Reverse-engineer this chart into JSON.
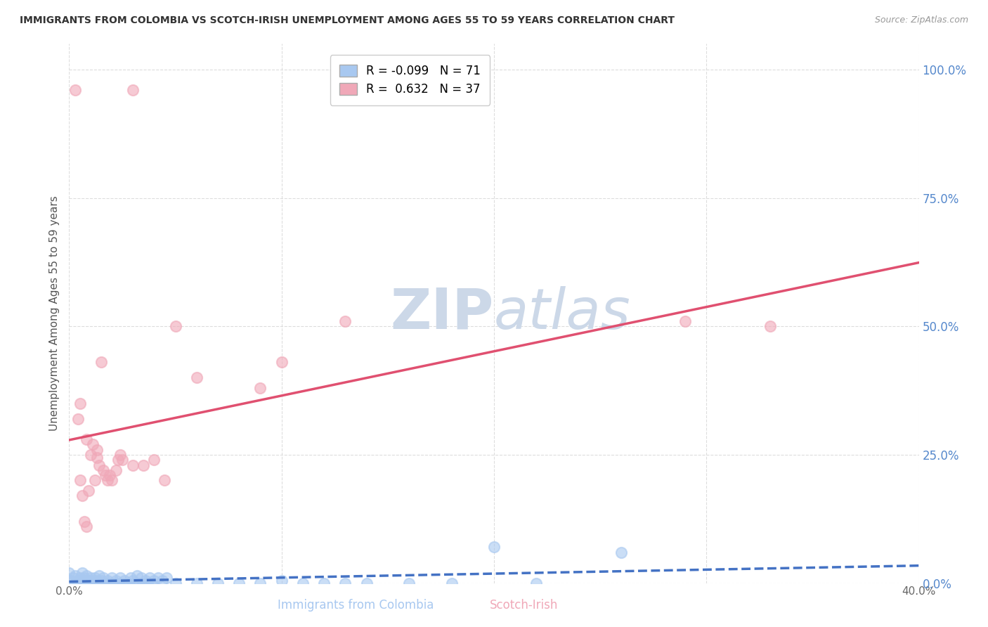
{
  "title": "IMMIGRANTS FROM COLOMBIA VS SCOTCH-IRISH UNEMPLOYMENT AMONG AGES 55 TO 59 YEARS CORRELATION CHART",
  "source": "Source: ZipAtlas.com",
  "ylabel": "Unemployment Among Ages 55 to 59 years",
  "xlabel_colombia": "Immigrants from Colombia",
  "xlabel_scotchirish": "Scotch-Irish",
  "xmin": 0.0,
  "xmax": 0.4,
  "ymin": 0.0,
  "ymax": 1.05,
  "y_ticks": [
    0.0,
    0.25,
    0.5,
    0.75,
    1.0
  ],
  "y_tick_labels": [
    "0.0%",
    "25.0%",
    "50.0%",
    "75.0%",
    "100.0%"
  ],
  "x_ticks": [
    0.0,
    0.1,
    0.2,
    0.3,
    0.4
  ],
  "x_tick_labels": [
    "0.0%",
    "",
    "",
    "",
    "40.0%"
  ],
  "colombia_R": -0.099,
  "colombia_N": 71,
  "scotch_R": 0.632,
  "scotch_N": 37,
  "colombia_color": "#a8c8f0",
  "scotch_color": "#f0a8b8",
  "colombia_line_color": "#4472c4",
  "scotch_line_color": "#e05070",
  "background_color": "#ffffff",
  "grid_color": "#dddddd",
  "watermark_color": "#ccd8e8",
  "colombia_points": [
    [
      0.0,
      0.02
    ],
    [
      0.001,
      0.005
    ],
    [
      0.002,
      0.01
    ],
    [
      0.003,
      0.0
    ],
    [
      0.003,
      0.015
    ],
    [
      0.004,
      0.005
    ],
    [
      0.004,
      0.0
    ],
    [
      0.005,
      0.01
    ],
    [
      0.005,
      0.005
    ],
    [
      0.006,
      0.0
    ],
    [
      0.006,
      0.02
    ],
    [
      0.007,
      0.005
    ],
    [
      0.007,
      0.01
    ],
    [
      0.008,
      0.0
    ],
    [
      0.008,
      0.015
    ],
    [
      0.009,
      0.005
    ],
    [
      0.009,
      0.0
    ],
    [
      0.01,
      0.01
    ],
    [
      0.01,
      0.0
    ],
    [
      0.011,
      0.005
    ],
    [
      0.011,
      0.0
    ],
    [
      0.012,
      0.0
    ],
    [
      0.012,
      0.01
    ],
    [
      0.013,
      0.005
    ],
    [
      0.013,
      0.0
    ],
    [
      0.014,
      0.015
    ],
    [
      0.015,
      0.005
    ],
    [
      0.015,
      0.0
    ],
    [
      0.016,
      0.01
    ],
    [
      0.017,
      0.0
    ],
    [
      0.018,
      0.005
    ],
    [
      0.019,
      0.0
    ],
    [
      0.02,
      0.01
    ],
    [
      0.021,
      0.0
    ],
    [
      0.022,
      0.005
    ],
    [
      0.023,
      0.0
    ],
    [
      0.024,
      0.01
    ],
    [
      0.025,
      0.0
    ],
    [
      0.026,
      0.005
    ],
    [
      0.027,
      0.0
    ],
    [
      0.028,
      0.0
    ],
    [
      0.029,
      0.01
    ],
    [
      0.03,
      0.005
    ],
    [
      0.031,
      0.0
    ],
    [
      0.032,
      0.015
    ],
    [
      0.033,
      0.0
    ],
    [
      0.034,
      0.01
    ],
    [
      0.035,
      0.0
    ],
    [
      0.036,
      0.005
    ],
    [
      0.037,
      0.0
    ],
    [
      0.038,
      0.01
    ],
    [
      0.039,
      0.0
    ],
    [
      0.04,
      0.005
    ],
    [
      0.042,
      0.01
    ],
    [
      0.044,
      0.005
    ],
    [
      0.046,
      0.01
    ],
    [
      0.05,
      0.0
    ],
    [
      0.06,
      0.0
    ],
    [
      0.07,
      0.0
    ],
    [
      0.08,
      0.0
    ],
    [
      0.09,
      0.0
    ],
    [
      0.1,
      0.005
    ],
    [
      0.11,
      0.0
    ],
    [
      0.12,
      0.0
    ],
    [
      0.13,
      0.0
    ],
    [
      0.14,
      0.0
    ],
    [
      0.16,
      0.0
    ],
    [
      0.18,
      0.0
    ],
    [
      0.2,
      0.07
    ],
    [
      0.22,
      0.0
    ],
    [
      0.26,
      0.06
    ]
  ],
  "scotch_points": [
    [
      0.003,
      0.96
    ],
    [
      0.03,
      0.96
    ],
    [
      0.004,
      0.32
    ],
    [
      0.005,
      0.35
    ],
    [
      0.005,
      0.2
    ],
    [
      0.006,
      0.17
    ],
    [
      0.007,
      0.12
    ],
    [
      0.008,
      0.11
    ],
    [
      0.008,
      0.28
    ],
    [
      0.009,
      0.18
    ],
    [
      0.01,
      0.25
    ],
    [
      0.011,
      0.27
    ],
    [
      0.012,
      0.2
    ],
    [
      0.013,
      0.26
    ],
    [
      0.013,
      0.245
    ],
    [
      0.014,
      0.23
    ],
    [
      0.015,
      0.43
    ],
    [
      0.016,
      0.22
    ],
    [
      0.017,
      0.21
    ],
    [
      0.018,
      0.2
    ],
    [
      0.019,
      0.21
    ],
    [
      0.02,
      0.2
    ],
    [
      0.022,
      0.22
    ],
    [
      0.023,
      0.24
    ],
    [
      0.024,
      0.25
    ],
    [
      0.025,
      0.24
    ],
    [
      0.03,
      0.23
    ],
    [
      0.035,
      0.23
    ],
    [
      0.04,
      0.24
    ],
    [
      0.045,
      0.2
    ],
    [
      0.05,
      0.5
    ],
    [
      0.06,
      0.4
    ],
    [
      0.09,
      0.38
    ],
    [
      0.1,
      0.43
    ],
    [
      0.13,
      0.51
    ],
    [
      0.29,
      0.51
    ],
    [
      0.33,
      0.5
    ]
  ]
}
